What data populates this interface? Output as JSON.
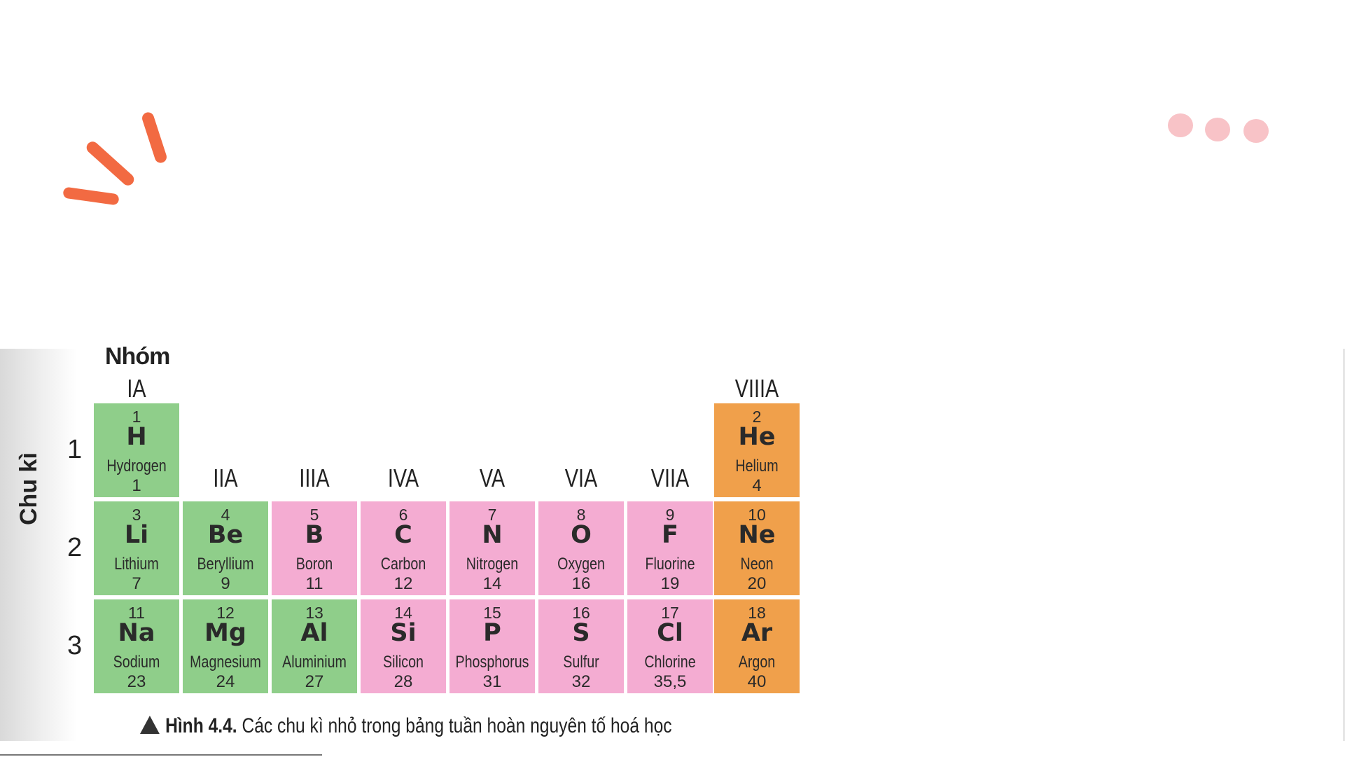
{
  "decorations": {
    "accent_orange": "#f26a42",
    "accent_pink": "#f8c3c7",
    "accent_green": "#2e8f58"
  },
  "figure": {
    "group_axis_label": "Nhóm",
    "period_axis_label": "Chu kì",
    "groups": [
      "IA",
      "IIA",
      "IIIA",
      "IVA",
      "VA",
      "VIA",
      "VIIA",
      "VIIIA"
    ],
    "periods": [
      "1",
      "2",
      "3"
    ],
    "category_colors": {
      "metal": "#8fce8a",
      "nonmetal": "#f4acd2",
      "noble": "#f0a04b"
    },
    "elements": [
      {
        "number": "1",
        "symbol": "H",
        "name": "Hydrogen",
        "mass": "1",
        "category": "metal"
      },
      {
        "number": "2",
        "symbol": "He",
        "name": "Helium",
        "mass": "4",
        "category": "noble"
      },
      {
        "number": "3",
        "symbol": "Li",
        "name": "Lithium",
        "mass": "7",
        "category": "metal"
      },
      {
        "number": "4",
        "symbol": "Be",
        "name": "Beryllium",
        "mass": "9",
        "category": "metal"
      },
      {
        "number": "5",
        "symbol": "B",
        "name": "Boron",
        "mass": "11",
        "category": "nonmetal"
      },
      {
        "number": "6",
        "symbol": "C",
        "name": "Carbon",
        "mass": "12",
        "category": "nonmetal"
      },
      {
        "number": "7",
        "symbol": "N",
        "name": "Nitrogen",
        "mass": "14",
        "category": "nonmetal"
      },
      {
        "number": "8",
        "symbol": "O",
        "name": "Oxygen",
        "mass": "16",
        "category": "nonmetal"
      },
      {
        "number": "9",
        "symbol": "F",
        "name": "Fluorine",
        "mass": "19",
        "category": "nonmetal"
      },
      {
        "number": "10",
        "symbol": "Ne",
        "name": "Neon",
        "mass": "20",
        "category": "noble"
      },
      {
        "number": "11",
        "symbol": "Na",
        "name": "Sodium",
        "mass": "23",
        "category": "metal"
      },
      {
        "number": "12",
        "symbol": "Mg",
        "name": "Magnesium",
        "mass": "24",
        "category": "metal"
      },
      {
        "number": "13",
        "symbol": "Al",
        "name": "Aluminium",
        "mass": "27",
        "category": "metal"
      },
      {
        "number": "14",
        "symbol": "Si",
        "name": "Silicon",
        "mass": "28",
        "category": "nonmetal"
      },
      {
        "number": "15",
        "symbol": "P",
        "name": "Phosphorus",
        "mass": "31",
        "category": "nonmetal"
      },
      {
        "number": "16",
        "symbol": "S",
        "name": "Sulfur",
        "mass": "32",
        "category": "nonmetal"
      },
      {
        "number": "17",
        "symbol": "Cl",
        "name": "Chlorine",
        "mass": "35,5",
        "category": "nonmetal"
      },
      {
        "number": "18",
        "symbol": "Ar",
        "name": "Argon",
        "mass": "40",
        "category": "noble"
      }
    ],
    "caption_label": "Hình 4.4.",
    "caption_text": "Các chu kì nhỏ trong bảng tuần hoàn nguyên tố hoá học"
  }
}
